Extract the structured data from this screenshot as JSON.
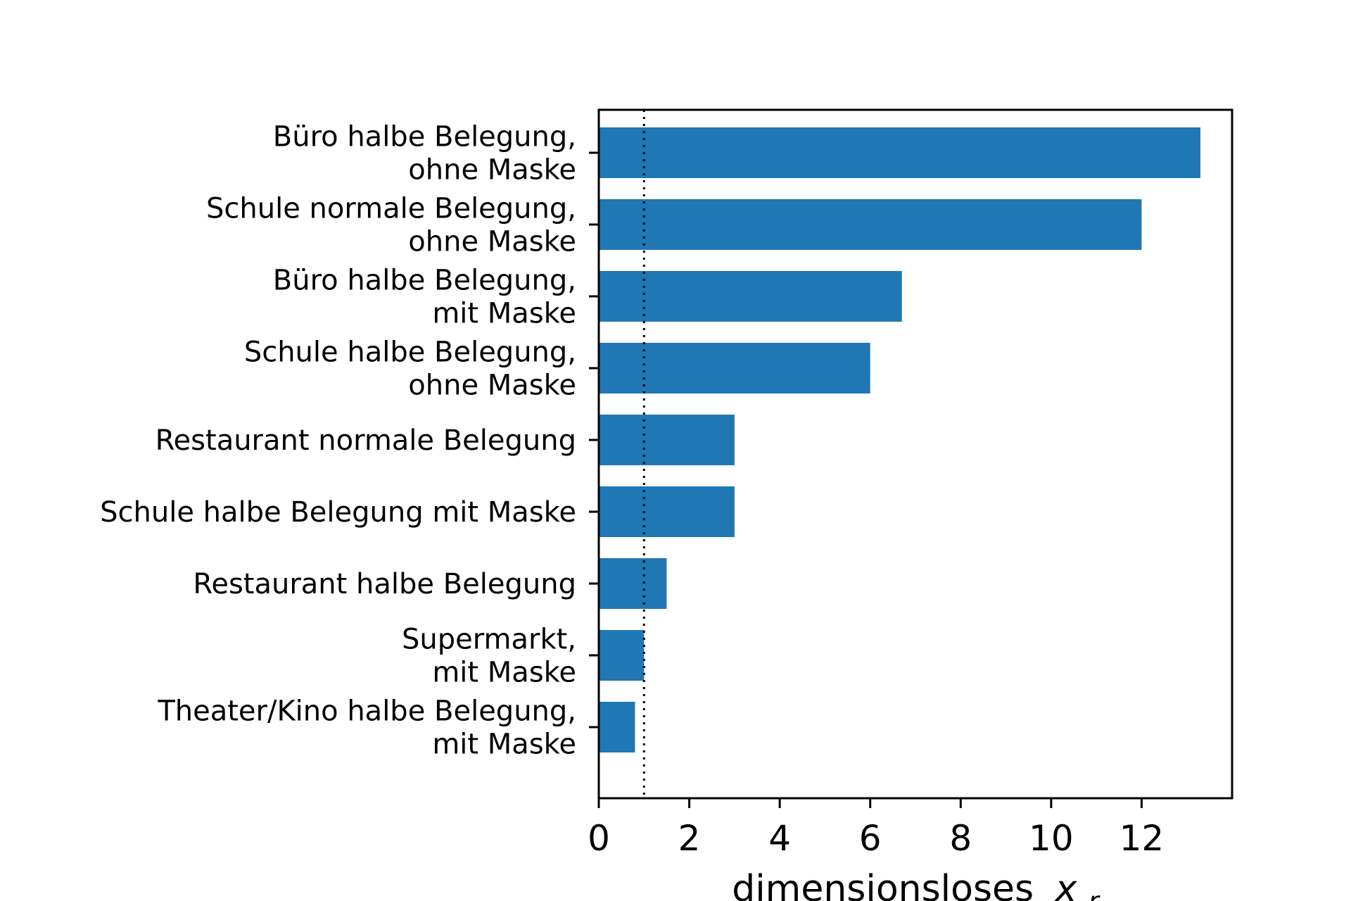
{
  "chart_data": {
    "type": "bar",
    "orientation": "horizontal",
    "categories": [
      [
        "Büro halbe Belegung,",
        "ohne Maske"
      ],
      [
        "Schule normale Belegung,",
        "ohne Maske"
      ],
      [
        "Büro halbe Belegung,",
        "mit Maske"
      ],
      [
        "Schule halbe Belegung,",
        "ohne Maske"
      ],
      [
        "Restaurant normale Belegung"
      ],
      [
        "Schule halbe Belegung mit Maske"
      ],
      [
        "Restaurant halbe Belegung"
      ],
      [
        "Supermarkt,",
        "mit Maske"
      ],
      [
        "Theater/Kino halbe Belegung,",
        "mit Maske"
      ]
    ],
    "values": [
      13.3,
      12.0,
      6.7,
      6.0,
      3.0,
      3.0,
      1.5,
      1.0,
      0.8
    ],
    "xlim": [
      0,
      14
    ],
    "xticks": [
      "0",
      "2",
      "4",
      "6",
      "8",
      "10",
      "12"
    ],
    "xlabel": "dimensionsloses",
    "xlabel_symbol": "x",
    "xlabel_subscript": "r",
    "reference_line": 1,
    "bar_color": "#1f77b4",
    "grid": false
  }
}
